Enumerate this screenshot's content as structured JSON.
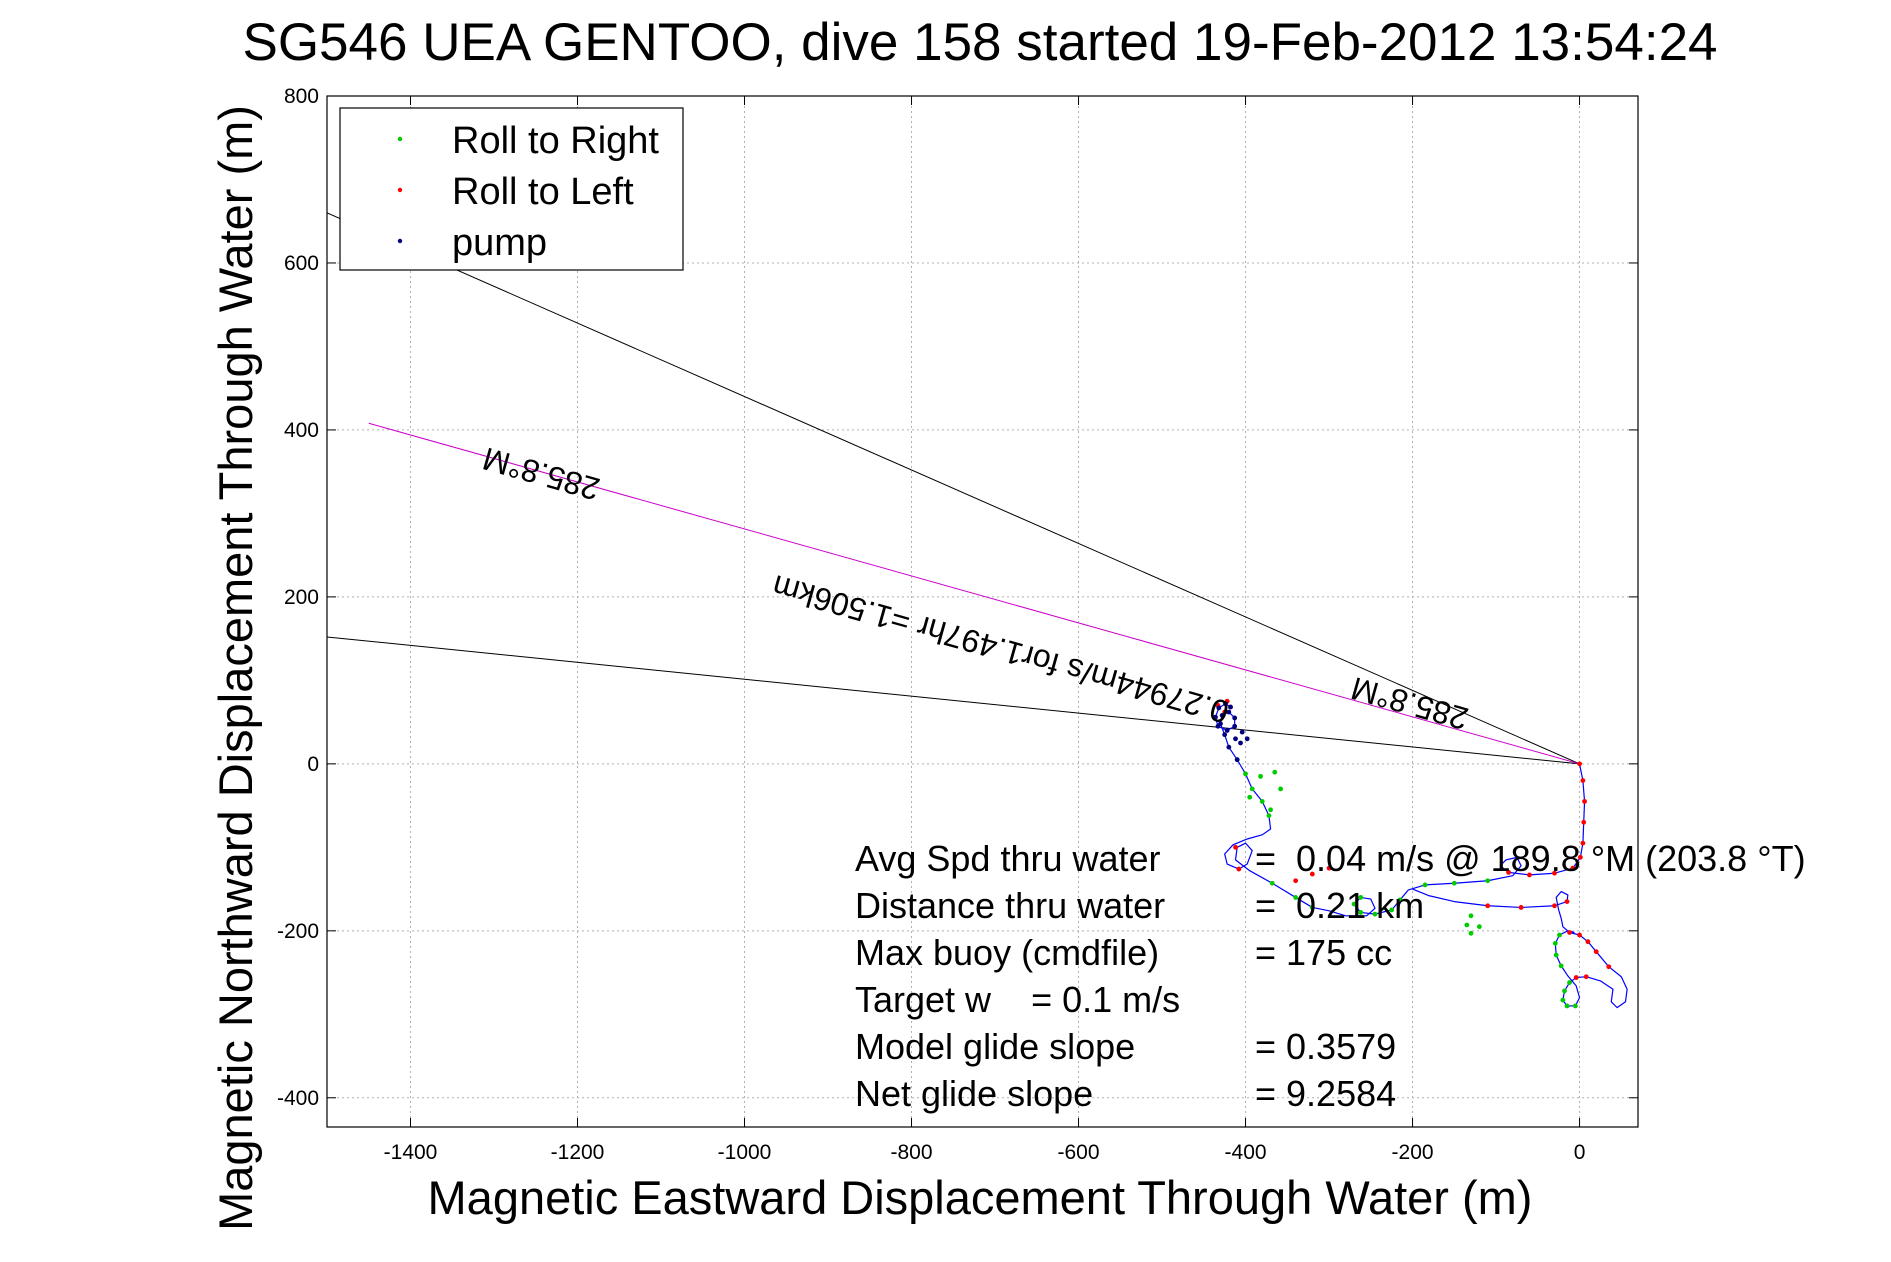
{
  "chart_data": {
    "type": "scatter",
    "title": "SG546 UEA GENTOO, dive 158 started 19-Feb-2012 13:54:24",
    "xlabel": "Magnetic Eastward Displacement Through Water (m)",
    "ylabel": "Magnetic Northward Displacement Through Water (m)",
    "xlim": [
      -1500,
      70
    ],
    "ylim": [
      -435,
      800
    ],
    "xticks": [
      -1400,
      -1200,
      -1000,
      -800,
      -600,
      -400,
      -200,
      0
    ],
    "yticks": [
      -400,
      -200,
      0,
      200,
      400,
      600,
      800
    ],
    "grid": true,
    "legend": {
      "placement": "top-left",
      "entries": [
        {
          "label": "Roll to Right",
          "color": "#00cc00"
        },
        {
          "label": "Roll to Left",
          "color": "#ff0000"
        },
        {
          "label": "pump",
          "color": "#000080"
        }
      ]
    },
    "lines": [
      {
        "role": "bounding-heading-line-upper",
        "color": "#000000",
        "points": [
          [
            0,
            0
          ],
          [
            -1500,
            660
          ]
        ]
      },
      {
        "role": "bounding-heading-line-lower",
        "color": "#000000",
        "points": [
          [
            0,
            0
          ],
          [
            -1500,
            152
          ]
        ]
      },
      {
        "role": "heading-line",
        "color": "#cc00cc",
        "points": [
          [
            0,
            0
          ],
          [
            -1450,
            408
          ]
        ]
      }
    ],
    "annotations": [
      {
        "text": "285.8°M",
        "x": -1240,
        "y": 360,
        "rotation": 15.7
      },
      {
        "text": "0.27944m/s for1.497hr =1.506km",
        "x": -690,
        "y": 150,
        "rotation": 15.7
      },
      {
        "text": "285.8°M",
        "x": -200,
        "y": 85,
        "rotation": 15.7
      }
    ],
    "stats": [
      {
        "label": "Avg Spd thru water",
        "value": "=  0.04 m/s @ 189.8 °M (203.8 °T)"
      },
      {
        "label": "Distance thru water",
        "value": "=  0.21 km"
      },
      {
        "label": "Max buoy (cmdfile)",
        "value": "= 175 cc"
      },
      {
        "label": "Target w    = 0.1 m/s",
        "value": ""
      },
      {
        "label": "Model glide slope",
        "value": "= 0.3579"
      },
      {
        "label": "Net glide slope",
        "value": "= 9.2584"
      }
    ],
    "series": [
      {
        "name": "track",
        "color": "#0000ff",
        "points": [
          [
            0,
            0
          ],
          [
            4,
            -20
          ],
          [
            6,
            -45
          ],
          [
            5,
            -70
          ],
          [
            4,
            -95
          ],
          [
            1,
            -112
          ],
          [
            -8,
            -125
          ],
          [
            -30,
            -131
          ],
          [
            -60,
            -133
          ],
          [
            -85,
            -130
          ],
          [
            -95,
            -122
          ],
          [
            -88,
            -115
          ],
          [
            -75,
            -112
          ],
          [
            -70,
            -122
          ],
          [
            -80,
            -134
          ],
          [
            -110,
            -140
          ],
          [
            -150,
            -143
          ],
          [
            -185,
            -145
          ],
          [
            -205,
            -151
          ],
          [
            -215,
            -163
          ],
          [
            -225,
            -175
          ],
          [
            -245,
            -180
          ],
          [
            -262,
            -178
          ],
          [
            -270,
            -168
          ],
          [
            -262,
            -160
          ],
          [
            -250,
            -162
          ],
          [
            -245,
            -173
          ],
          [
            -255,
            -182
          ],
          [
            -280,
            -182
          ],
          [
            -300,
            -176
          ],
          [
            -320,
            -172
          ],
          [
            -340,
            -160
          ],
          [
            -368,
            -143
          ],
          [
            -395,
            -128
          ],
          [
            -412,
            -115
          ],
          [
            -410,
            -100
          ],
          [
            -400,
            -95
          ],
          [
            -392,
            -104
          ],
          [
            -398,
            -120
          ],
          [
            -408,
            -126
          ],
          [
            -422,
            -120
          ],
          [
            -425,
            -108
          ],
          [
            -415,
            -97
          ],
          [
            -398,
            -90
          ],
          [
            -380,
            -85
          ],
          [
            -370,
            -78
          ],
          [
            -372,
            -62
          ],
          [
            -380,
            -45
          ],
          [
            -392,
            -30
          ],
          [
            -400,
            -12
          ],
          [
            -410,
            5
          ],
          [
            -420,
            20
          ],
          [
            -425,
            35
          ],
          [
            -430,
            48
          ],
          [
            -428,
            58
          ],
          [
            -420,
            62
          ],
          [
            -413,
            55
          ],
          [
            -413,
            45
          ],
          [
            -422,
            40
          ],
          [
            -433,
            45
          ],
          [
            -436,
            56
          ],
          [
            -432,
            67
          ],
          [
            -424,
            72
          ],
          [
            -418,
            68
          ]
        ]
      },
      {
        "name": "branch",
        "color": "#0000ff",
        "points": [
          [
            -200,
            -150
          ],
          [
            -180,
            -158
          ],
          [
            -150,
            -165
          ],
          [
            -110,
            -170
          ],
          [
            -70,
            -172
          ],
          [
            -30,
            -170
          ],
          [
            -15,
            -165
          ],
          [
            -14,
            -157
          ],
          [
            -22,
            -153
          ],
          [
            -28,
            -160
          ],
          [
            -25,
            -175
          ],
          [
            -22,
            -185
          ],
          [
            -20,
            -195
          ],
          [
            -12,
            -202
          ],
          [
            0,
            -205
          ],
          [
            10,
            -213
          ],
          [
            20,
            -225
          ],
          [
            35,
            -243
          ],
          [
            50,
            -255
          ],
          [
            57,
            -270
          ],
          [
            55,
            -285
          ],
          [
            45,
            -292
          ],
          [
            38,
            -285
          ],
          [
            40,
            -270
          ],
          [
            25,
            -260
          ],
          [
            8,
            -255
          ],
          [
            -4,
            -256
          ],
          [
            -12,
            -262
          ],
          [
            -18,
            -272
          ],
          [
            -20,
            -283
          ],
          [
            -15,
            -290
          ],
          [
            -5,
            -290
          ],
          [
            0,
            -280
          ],
          [
            -4,
            -266
          ],
          [
            -14,
            -254
          ],
          [
            -22,
            -242
          ],
          [
            -28,
            -229
          ],
          [
            -29,
            -215
          ],
          [
            -24,
            -205
          ],
          [
            -14,
            -200
          ],
          [
            -6,
            -202
          ]
        ]
      },
      {
        "name": "Roll to Right",
        "color": "#00cc00",
        "points": [
          [
            -22,
            -242
          ],
          [
            -28,
            -229
          ],
          [
            -29,
            -215
          ],
          [
            -24,
            -205
          ],
          [
            -12,
            -262
          ],
          [
            -18,
            -272
          ],
          [
            -20,
            -283
          ],
          [
            -15,
            -290
          ],
          [
            -5,
            -290
          ],
          [
            -110,
            -140
          ],
          [
            -150,
            -143
          ],
          [
            -185,
            -145
          ],
          [
            -215,
            -163
          ],
          [
            -225,
            -175
          ],
          [
            -245,
            -180
          ],
          [
            -262,
            -178
          ],
          [
            -270,
            -168
          ],
          [
            -262,
            -160
          ],
          [
            -130,
            -182
          ],
          [
            -120,
            -195
          ],
          [
            -130,
            -203
          ],
          [
            -135,
            -193
          ],
          [
            -320,
            -172
          ],
          [
            -340,
            -160
          ],
          [
            -368,
            -143
          ],
          [
            -372,
            -62
          ],
          [
            -380,
            -45
          ],
          [
            -392,
            -30
          ],
          [
            -400,
            -12
          ],
          [
            -410,
            5
          ],
          [
            -395,
            -40
          ],
          [
            -382,
            -15
          ],
          [
            -365,
            -10
          ],
          [
            -358,
            -30
          ],
          [
            -370,
            -55
          ]
        ]
      },
      {
        "name": "Roll to Left",
        "color": "#ff0000",
        "points": [
          [
            0,
            0
          ],
          [
            4,
            -20
          ],
          [
            6,
            -45
          ],
          [
            5,
            -70
          ],
          [
            4,
            -95
          ],
          [
            1,
            -112
          ],
          [
            -8,
            -125
          ],
          [
            -30,
            -131
          ],
          [
            -60,
            -133
          ],
          [
            -85,
            -130
          ],
          [
            -110,
            -170
          ],
          [
            -70,
            -172
          ],
          [
            -30,
            -170
          ],
          [
            -15,
            -165
          ],
          [
            20,
            -225
          ],
          [
            35,
            -243
          ],
          [
            8,
            -255
          ],
          [
            -4,
            -256
          ],
          [
            -12,
            -202
          ],
          [
            0,
            -205
          ],
          [
            10,
            -213
          ],
          [
            -300,
            -125
          ],
          [
            -320,
            -132
          ],
          [
            -340,
            -140
          ],
          [
            -425,
            62
          ],
          [
            -433,
            70
          ],
          [
            -422,
            75
          ],
          [
            -418,
            68
          ],
          [
            -412,
            -100
          ],
          [
            -408,
            -126
          ]
        ]
      },
      {
        "name": "pump",
        "color": "#000080",
        "points": [
          [
            -410,
            5
          ],
          [
            -420,
            20
          ],
          [
            -425,
            35
          ],
          [
            -430,
            48
          ],
          [
            -428,
            58
          ],
          [
            -420,
            62
          ],
          [
            -413,
            55
          ],
          [
            -413,
            45
          ],
          [
            -422,
            40
          ],
          [
            -433,
            45
          ],
          [
            -436,
            56
          ],
          [
            -432,
            67
          ],
          [
            -424,
            72
          ],
          [
            -418,
            68
          ],
          [
            -406,
            25
          ],
          [
            -398,
            30
          ],
          [
            -404,
            38
          ],
          [
            -412,
            30
          ]
        ]
      }
    ]
  }
}
